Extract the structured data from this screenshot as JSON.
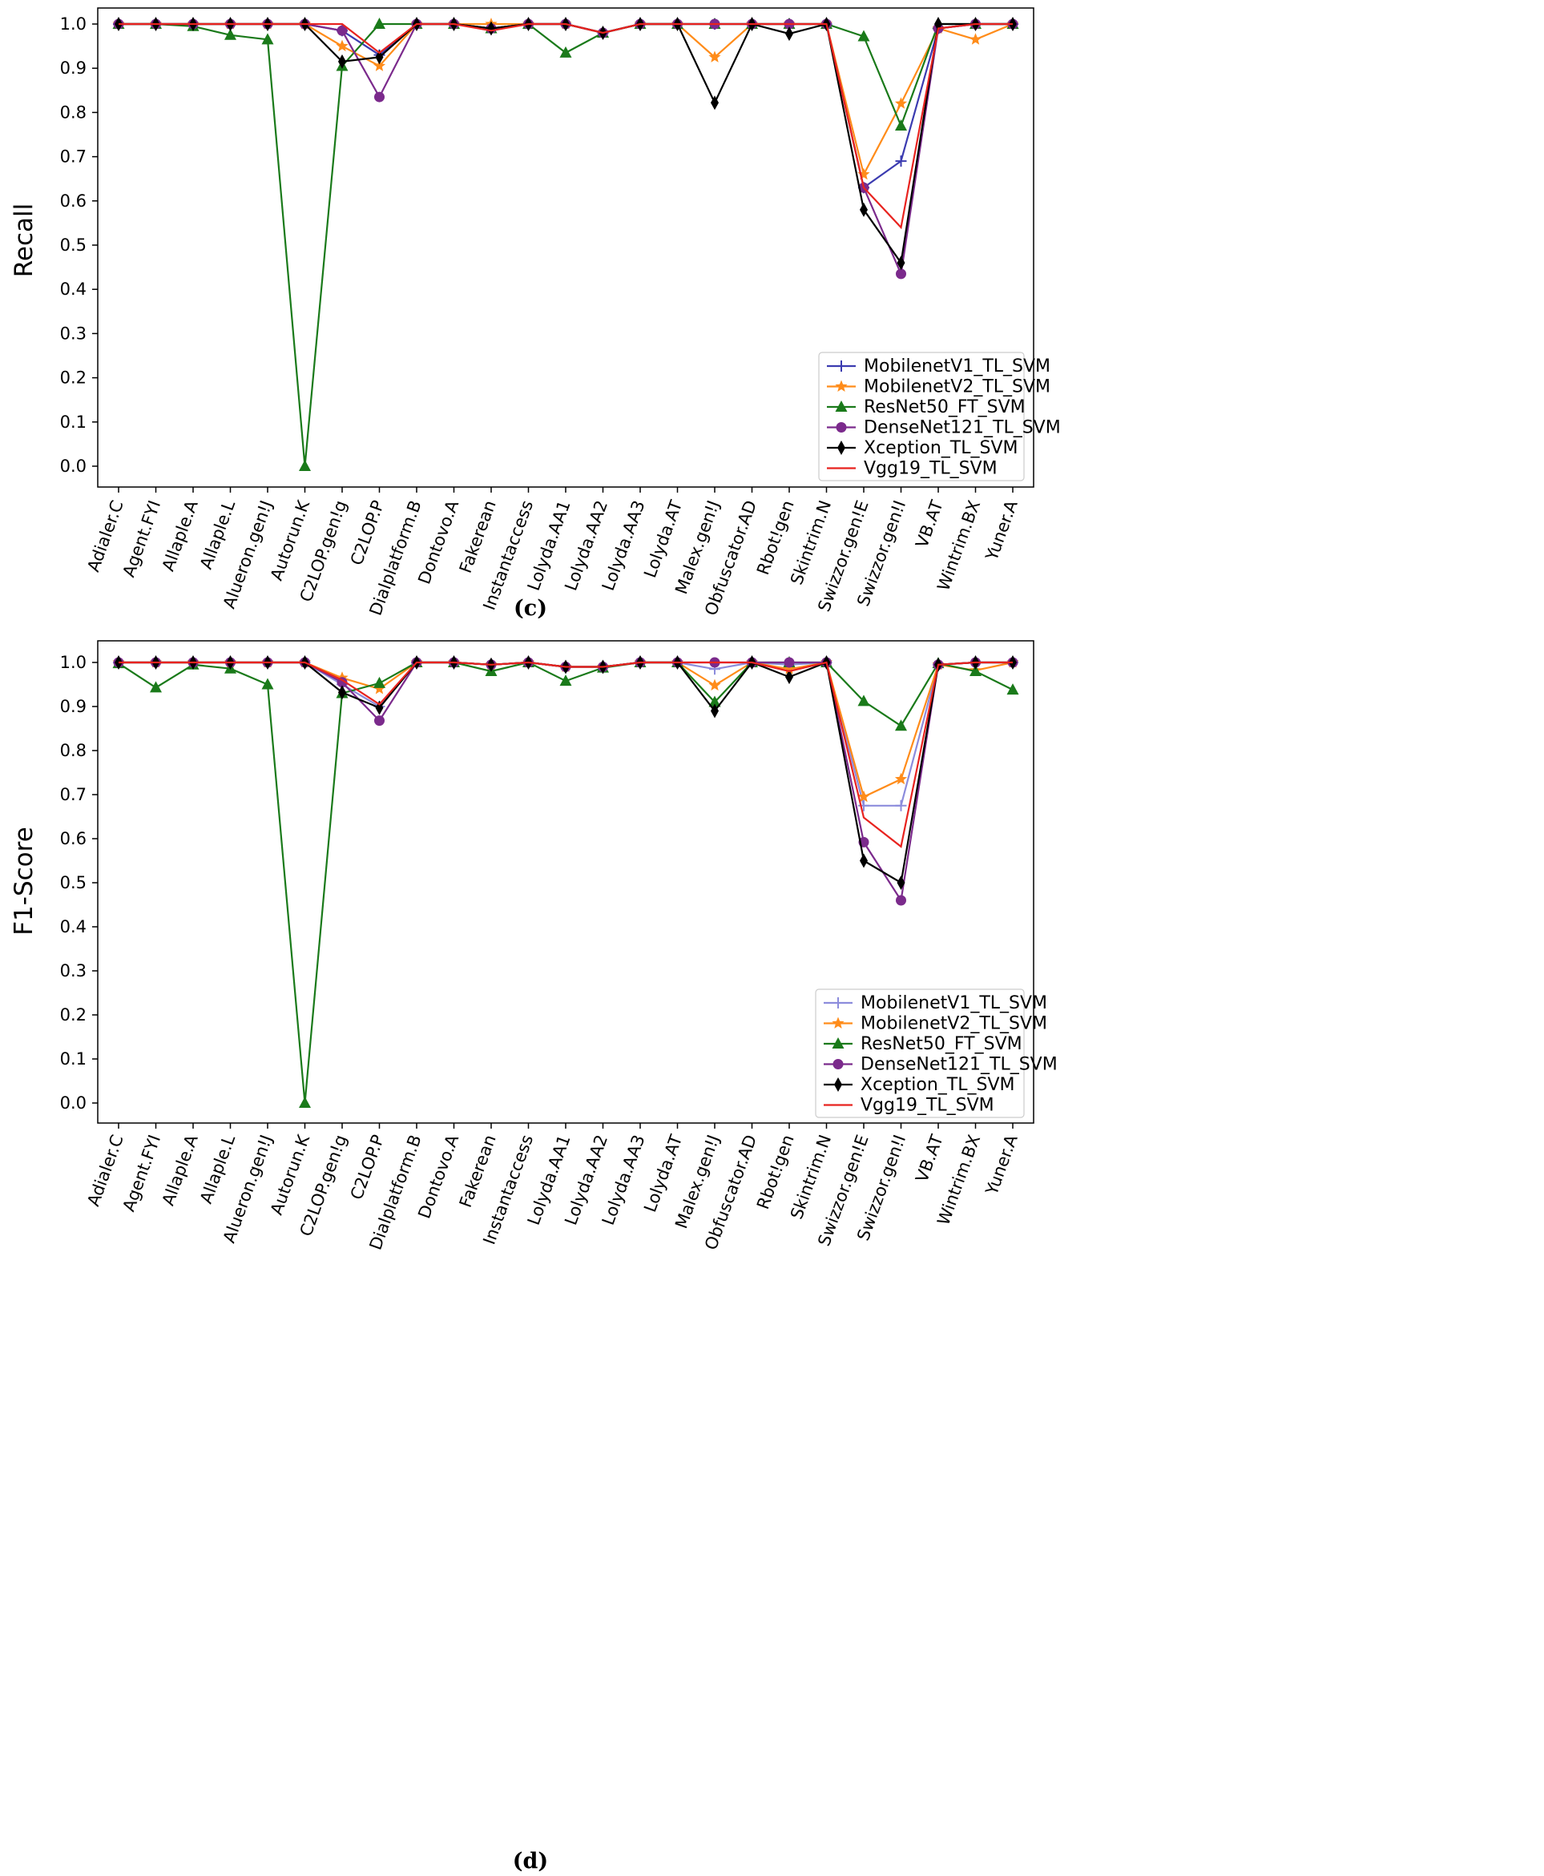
{
  "chart_data": [
    {
      "type": "line",
      "caption": "(c)",
      "ylabel": "Recall",
      "xlabel": "",
      "ylim": [
        0.0,
        1.0
      ],
      "yticks": [
        "0.0",
        "0.1",
        "0.2",
        "0.3",
        "0.4",
        "0.5",
        "0.6",
        "0.7",
        "0.8",
        "0.9",
        "1.0"
      ],
      "grid": false,
      "legend_position": "lower-right",
      "categories": [
        "Adialer.C",
        "Agent.FYI",
        "Allaple.A",
        "Allaple.L",
        "Alueron.gen!J",
        "Autorun.K",
        "C2LOP.gen!g",
        "C2LOP.P",
        "Dialplatform.B",
        "Dontovo.A",
        "Fakerean",
        "Instantaccess",
        "Lolyda.AA1",
        "Lolyda.AA2",
        "Lolyda.AA3",
        "Lolyda.AT",
        "Malex.gen!J",
        "Obfuscator.AD",
        "Rbot!gen",
        "Skintrim.N",
        "Swizzor.gen!E",
        "Swizzor.gen!I",
        "VB.AT",
        "Wintrim.BX",
        "Yuner.A"
      ],
      "series": [
        {
          "name": "MobilenetV1_TL_SVM",
          "color": "#3b3bb0",
          "marker": "plus",
          "values": [
            1.0,
            1.0,
            1.0,
            1.0,
            1.0,
            1.0,
            0.985,
            0.93,
            1.0,
            1.0,
            0.99,
            1.0,
            1.0,
            0.98,
            1.0,
            1.0,
            1.0,
            1.0,
            1.0,
            1.0,
            0.63,
            0.69,
            0.99,
            1.0,
            1.0
          ]
        },
        {
          "name": "MobilenetV2_TL_SVM",
          "color": "#ff8c1a",
          "marker": "star",
          "values": [
            1.0,
            1.0,
            1.0,
            1.0,
            1.0,
            1.0,
            0.95,
            0.905,
            1.0,
            1.0,
            1.0,
            1.0,
            1.0,
            0.98,
            1.0,
            1.0,
            0.925,
            1.0,
            1.0,
            1.0,
            0.66,
            0.82,
            0.99,
            0.965,
            1.0
          ]
        },
        {
          "name": "ResNet50_FT_SVM",
          "color": "#1a7a1a",
          "marker": "triangle",
          "values": [
            1.0,
            1.0,
            0.995,
            0.975,
            0.965,
            0.0,
            0.905,
            1.0,
            1.0,
            1.0,
            0.99,
            1.0,
            0.935,
            0.98,
            1.0,
            1.0,
            1.0,
            1.0,
            1.0,
            1.0,
            0.972,
            0.77,
            1.0,
            1.0,
            1.0
          ]
        },
        {
          "name": "DenseNet121_TL_SVM",
          "color": "#7b2a8c",
          "marker": "circle",
          "values": [
            1.0,
            1.0,
            1.0,
            1.0,
            1.0,
            1.0,
            0.985,
            0.835,
            1.0,
            1.0,
            0.99,
            1.0,
            1.0,
            0.98,
            1.0,
            1.0,
            1.0,
            1.0,
            1.0,
            1.0,
            0.63,
            0.435,
            0.99,
            1.0,
            1.0
          ]
        },
        {
          "name": "Xception_TL_SVM",
          "color": "#000000",
          "marker": "diamond",
          "values": [
            1.0,
            1.0,
            1.0,
            1.0,
            1.0,
            1.0,
            0.915,
            0.925,
            1.0,
            1.0,
            0.99,
            1.0,
            1.0,
            0.98,
            1.0,
            1.0,
            0.822,
            1.0,
            0.978,
            1.0,
            0.58,
            0.46,
            1.0,
            1.0,
            1.0
          ]
        },
        {
          "name": "Vgg19_TL_SVM",
          "color": "#e8231f",
          "marker": "none",
          "values": [
            1.0,
            1.0,
            1.0,
            1.0,
            1.0,
            1.0,
            1.0,
            0.935,
            1.0,
            1.0,
            0.985,
            1.0,
            1.0,
            0.98,
            1.0,
            1.0,
            1.0,
            1.0,
            1.0,
            1.0,
            0.63,
            0.54,
            0.99,
            1.0,
            1.0
          ]
        }
      ]
    },
    {
      "type": "line",
      "caption": "(d)",
      "ylabel": "F1-Score",
      "xlabel": "",
      "ylim": [
        0.0,
        1.0
      ],
      "yticks": [
        "0.0",
        "0.1",
        "0.2",
        "0.3",
        "0.4",
        "0.5",
        "0.6",
        "0.7",
        "0.8",
        "0.9",
        "1.0"
      ],
      "grid": false,
      "legend_position": "lower-right",
      "categories": [
        "Adialer.C",
        "Agent.FYI",
        "Allaple.A",
        "Allaple.L",
        "Alueron.gen!J",
        "Autorun.K",
        "C2LOP.gen!g",
        "C2LOP.P",
        "Dialplatform.B",
        "Dontovo.A",
        "Fakerean",
        "Instantaccess",
        "Lolyda.AA1",
        "Lolyda.AA2",
        "Lolyda.AA3",
        "Lolyda.AT",
        "Malex.gen!J",
        "Obfuscator.AD",
        "Rbot!gen",
        "Skintrim.N",
        "Swizzor.gen!E",
        "Swizzor.gen!I",
        "VB.AT",
        "Wintrim.BX",
        "Yuner.A"
      ],
      "series": [
        {
          "name": "MobilenetV1_TL_SVM",
          "color": "#8c8cdc",
          "marker": "plus",
          "values": [
            1.0,
            1.0,
            1.0,
            1.0,
            1.0,
            1.0,
            0.95,
            0.9,
            1.0,
            1.0,
            0.995,
            1.0,
            0.99,
            0.99,
            1.0,
            1.0,
            0.985,
            1.0,
            0.995,
            1.0,
            0.675,
            0.675,
            0.995,
            1.0,
            1.0
          ]
        },
        {
          "name": "MobilenetV2_TL_SVM",
          "color": "#ff8c1a",
          "marker": "star",
          "values": [
            1.0,
            1.0,
            1.0,
            1.0,
            1.0,
            1.0,
            0.965,
            0.94,
            1.0,
            1.0,
            0.995,
            1.0,
            0.99,
            0.99,
            1.0,
            1.0,
            0.948,
            1.0,
            0.985,
            1.0,
            0.695,
            0.735,
            0.995,
            0.982,
            1.0
          ]
        },
        {
          "name": "ResNet50_FT_SVM",
          "color": "#1a7a1a",
          "marker": "triangle",
          "values": [
            0.998,
            0.943,
            0.995,
            0.986,
            0.95,
            0.0,
            0.93,
            0.953,
            1.0,
            1.0,
            0.98,
            1.0,
            0.958,
            0.988,
            1.0,
            1.0,
            0.91,
            1.0,
            1.0,
            1.0,
            0.912,
            0.856,
            0.998,
            0.98,
            0.938
          ]
        },
        {
          "name": "DenseNet121_TL_SVM",
          "color": "#7b2a8c",
          "marker": "circle",
          "values": [
            1.0,
            1.0,
            1.0,
            1.0,
            1.0,
            1.0,
            0.955,
            0.868,
            1.0,
            1.0,
            0.995,
            1.0,
            0.99,
            0.99,
            1.0,
            1.0,
            1.0,
            1.0,
            1.0,
            1.0,
            0.592,
            0.46,
            0.995,
            1.0,
            1.0
          ]
        },
        {
          "name": "Xception_TL_SVM",
          "color": "#000000",
          "marker": "diamond",
          "values": [
            1.0,
            1.0,
            1.0,
            1.0,
            1.0,
            1.0,
            0.932,
            0.897,
            1.0,
            1.0,
            0.995,
            1.0,
            0.99,
            0.99,
            1.0,
            1.0,
            0.89,
            1.0,
            0.967,
            1.0,
            0.55,
            0.5,
            0.995,
            1.0,
            1.0
          ]
        },
        {
          "name": "Vgg19_TL_SVM",
          "color": "#e8231f",
          "marker": "none",
          "values": [
            1.0,
            1.0,
            1.0,
            1.0,
            1.0,
            1.0,
            0.96,
            0.905,
            1.0,
            1.0,
            0.995,
            1.0,
            0.99,
            0.99,
            1.0,
            1.0,
            1.0,
            1.0,
            0.98,
            1.0,
            0.648,
            0.582,
            0.995,
            1.0,
            1.0
          ]
        }
      ]
    }
  ]
}
